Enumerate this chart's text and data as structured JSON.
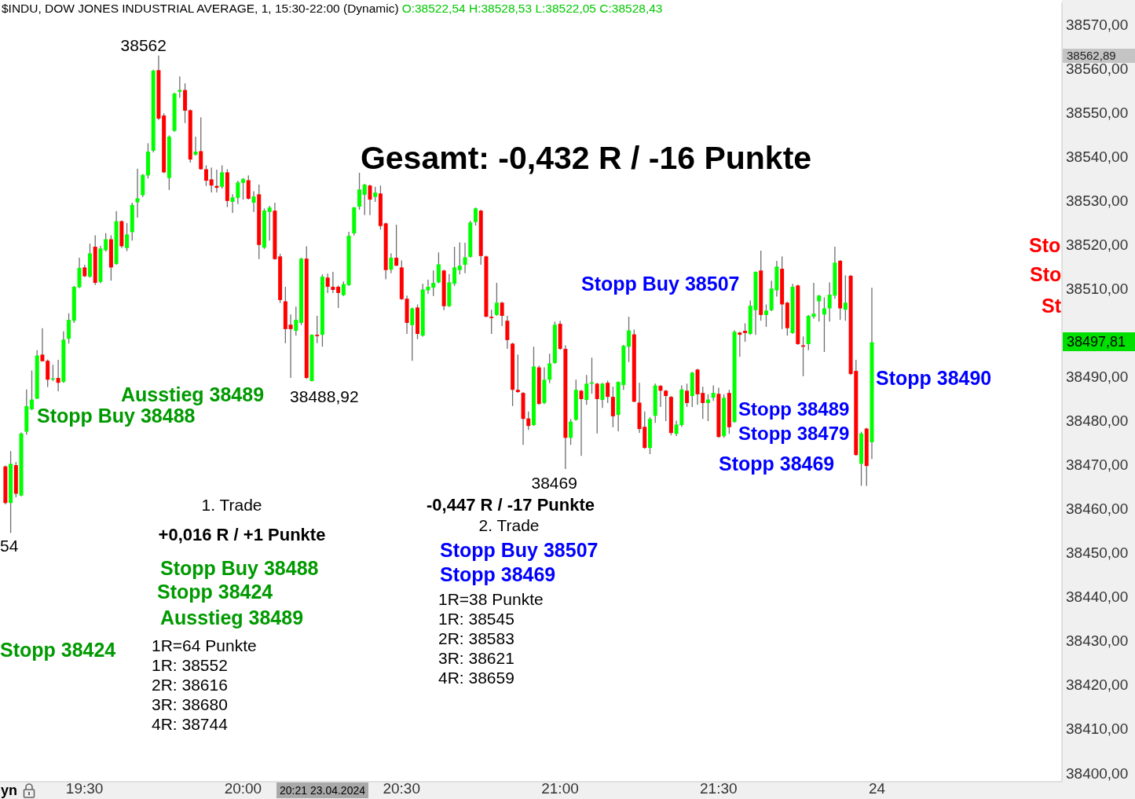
{
  "chart_data": {
    "type": "candlestick",
    "title": "$INDU, DOW JONES INDUSTRIAL AVERAGE, 1, 15:30-22:00 (Dynamic)",
    "subtitle": "O:38522,54 H:38528,53 L:38522,05 C:38528,43",
    "x": [
      "2024-04-23T19:15",
      "2024-04-23T19:16",
      "2024-04-23T19:17",
      "2024-04-23T19:18",
      "2024-04-23T19:19",
      "2024-04-23T19:20",
      "2024-04-23T19:21",
      "2024-04-23T19:22",
      "2024-04-23T19:23",
      "2024-04-23T19:24",
      "2024-04-23T19:25",
      "2024-04-23T19:26",
      "2024-04-23T19:27",
      "2024-04-23T19:28",
      "2024-04-23T19:29",
      "2024-04-23T19:30",
      "2024-04-23T19:31",
      "2024-04-23T19:32",
      "2024-04-23T19:33",
      "2024-04-23T19:34",
      "2024-04-23T19:35",
      "2024-04-23T19:36",
      "2024-04-23T19:37",
      "2024-04-23T19:38",
      "2024-04-23T19:39",
      "2024-04-23T19:40",
      "2024-04-23T19:41",
      "2024-04-23T19:42",
      "2024-04-23T19:43",
      "2024-04-23T19:44",
      "2024-04-23T19:45",
      "2024-04-23T19:46",
      "2024-04-23T19:47",
      "2024-04-23T19:48",
      "2024-04-23T19:49",
      "2024-04-23T19:50",
      "2024-04-23T19:51",
      "2024-04-23T19:52",
      "2024-04-23T19:53",
      "2024-04-23T19:54",
      "2024-04-23T19:55",
      "2024-04-23T19:56",
      "2024-04-23T19:57",
      "2024-04-23T19:58",
      "2024-04-23T19:59",
      "2024-04-23T20:00",
      "2024-04-23T20:01",
      "2024-04-23T20:02",
      "2024-04-23T20:03",
      "2024-04-23T20:04",
      "2024-04-23T20:05",
      "2024-04-23T20:06",
      "2024-04-23T20:07",
      "2024-04-23T20:08",
      "2024-04-23T20:09",
      "2024-04-23T20:10",
      "2024-04-23T20:11",
      "2024-04-23T20:12",
      "2024-04-23T20:13",
      "2024-04-23T20:14",
      "2024-04-23T20:15",
      "2024-04-23T20:16",
      "2024-04-23T20:17",
      "2024-04-23T20:18",
      "2024-04-23T20:19",
      "2024-04-23T20:20",
      "2024-04-23T20:21",
      "2024-04-23T20:22",
      "2024-04-23T20:23",
      "2024-04-23T20:24",
      "2024-04-23T20:25",
      "2024-04-23T20:26",
      "2024-04-23T20:27",
      "2024-04-23T20:28",
      "2024-04-23T20:29",
      "2024-04-23T20:30",
      "2024-04-23T20:31",
      "2024-04-23T20:32",
      "2024-04-23T20:33",
      "2024-04-23T20:34",
      "2024-04-23T20:35",
      "2024-04-23T20:36",
      "2024-04-23T20:37",
      "2024-04-23T20:38",
      "2024-04-23T20:39",
      "2024-04-23T20:40",
      "2024-04-23T20:41",
      "2024-04-23T20:42",
      "2024-04-23T20:43",
      "2024-04-23T20:44",
      "2024-04-23T20:45",
      "2024-04-23T20:46",
      "2024-04-23T20:47",
      "2024-04-23T20:48",
      "2024-04-23T20:49",
      "2024-04-23T20:50",
      "2024-04-23T20:51",
      "2024-04-23T20:52",
      "2024-04-23T20:53",
      "2024-04-23T20:54",
      "2024-04-23T20:55",
      "2024-04-23T20:56",
      "2024-04-23T20:57",
      "2024-04-23T20:58",
      "2024-04-23T20:59",
      "2024-04-23T21:00",
      "2024-04-23T21:01",
      "2024-04-23T21:02",
      "2024-04-23T21:03",
      "2024-04-23T21:04",
      "2024-04-23T21:05",
      "2024-04-23T21:06",
      "2024-04-23T21:07",
      "2024-04-23T21:08",
      "2024-04-23T21:09",
      "2024-04-23T21:10",
      "2024-04-23T21:11",
      "2024-04-23T21:12",
      "2024-04-23T21:13",
      "2024-04-23T21:14",
      "2024-04-23T21:15",
      "2024-04-23T21:16",
      "2024-04-23T21:17",
      "2024-04-23T21:18",
      "2024-04-23T21:19",
      "2024-04-23T21:20",
      "2024-04-23T21:21",
      "2024-04-23T21:22",
      "2024-04-23T21:23",
      "2024-04-23T21:24",
      "2024-04-23T21:25",
      "2024-04-23T21:26",
      "2024-04-23T21:27",
      "2024-04-23T21:28",
      "2024-04-23T21:29",
      "2024-04-23T21:30",
      "2024-04-23T21:31",
      "2024-04-23T21:32",
      "2024-04-23T21:33",
      "2024-04-23T21:34",
      "2024-04-23T21:35",
      "2024-04-23T21:36",
      "2024-04-23T21:37",
      "2024-04-23T21:38",
      "2024-04-23T21:39",
      "2024-04-23T21:40",
      "2024-04-23T21:41",
      "2024-04-23T21:42",
      "2024-04-23T21:43",
      "2024-04-23T21:44",
      "2024-04-23T21:45",
      "2024-04-23T21:46",
      "2024-04-23T21:47",
      "2024-04-23T21:48",
      "2024-04-23T21:49",
      "2024-04-23T21:50",
      "2024-04-23T21:51",
      "2024-04-23T21:52",
      "2024-04-23T21:53",
      "2024-04-23T21:54",
      "2024-04-23T21:55",
      "2024-04-23T21:56",
      "2024-04-23T21:57",
      "2024-04-23T21:58",
      "2024-04-23T21:59"
    ],
    "ohlc": [
      [
        38469.6,
        38469.8,
        38461.0,
        38461.3
      ],
      [
        38461.3,
        38473.1,
        38454.5,
        38470.2
      ],
      [
        38469.9,
        38470.6,
        38462.6,
        38463.4
      ],
      [
        38463.0,
        38477.3,
        38462.8,
        38477.1
      ],
      [
        38477.5,
        38487.1,
        38476.8,
        38483.3
      ],
      [
        38482.6,
        38491.4,
        38482.4,
        38484.8
      ],
      [
        38485.0,
        38496.0,
        38484.9,
        38494.8
      ],
      [
        38495.0,
        38501.0,
        38493.4,
        38493.5
      ],
      [
        38493.6,
        38493.9,
        38487.6,
        38489.3
      ],
      [
        38489.4,
        38492.7,
        38489.0,
        38489.6
      ],
      [
        38489.7,
        38493.8,
        38486.7,
        38488.6
      ],
      [
        38488.8,
        38500.3,
        38488.6,
        38498.4
      ],
      [
        38498.6,
        38504.4,
        38497.5,
        38502.9
      ],
      [
        38502.7,
        38510.6,
        38502.2,
        38510.4
      ],
      [
        38510.3,
        38517.0,
        38510.1,
        38514.7
      ],
      [
        38514.8,
        38515.4,
        38512.6,
        38512.8
      ],
      [
        38512.7,
        38520.2,
        38512.5,
        38518.0
      ],
      [
        38519.5,
        38522.1,
        38510.8,
        38511.3
      ],
      [
        38511.5,
        38519.7,
        38511.2,
        38519.1
      ],
      [
        38518.7,
        38522.6,
        38518.4,
        38521.2
      ],
      [
        38521.2,
        38522.1,
        38511.8,
        38514.8
      ],
      [
        38515.6,
        38527.6,
        38515.4,
        38525.3
      ],
      [
        38525.3,
        38525.5,
        38519.2,
        38519.6
      ],
      [
        38519.2,
        38524.9,
        38518.5,
        38522.3
      ],
      [
        38522.8,
        38529.5,
        38520.9,
        38529.0
      ],
      [
        38529.6,
        38537.2,
        38526.1,
        38530.5
      ],
      [
        38531.2,
        38536.0,
        38530.8,
        38535.8
      ],
      [
        38535.7,
        38543.0,
        38535.0,
        38541.1
      ],
      [
        38541.3,
        38559.7,
        38540.9,
        38559.5
      ],
      [
        38559.6,
        38562.89,
        38548.3,
        38548.6
      ],
      [
        38549.3,
        38549.8,
        38536.2,
        38536.4
      ],
      [
        38535.1,
        38544.8,
        38532.4,
        38544.5
      ],
      [
        38545.8,
        38554.5,
        38545.6,
        38554.3
      ],
      [
        38554.7,
        38558.2,
        38553.3,
        38555.1
      ],
      [
        38555.1,
        38556.6,
        38547.6,
        38550.4
      ],
      [
        38550.5,
        38550.7,
        38538.6,
        38539.3
      ],
      [
        38540.4,
        38544.5,
        38540.2,
        38541.1
      ],
      [
        38541.2,
        38548.9,
        38537.0,
        38537.1
      ],
      [
        38537.1,
        38538.0,
        38533.3,
        38534.5
      ],
      [
        38534.8,
        38537.5,
        38531.8,
        38533.4
      ],
      [
        38533.3,
        38537.0,
        38531.8,
        38532.9
      ],
      [
        38533.1,
        38538.0,
        38532.7,
        38536.4
      ],
      [
        38536.4,
        38537.1,
        38528.5,
        38529.9
      ],
      [
        38529.7,
        38531.4,
        38527.2,
        38530.7
      ],
      [
        38530.6,
        38534.5,
        38529.2,
        38534.1
      ],
      [
        38534.0,
        38535.1,
        38530.2,
        38534.9
      ],
      [
        38534.6,
        38535.7,
        38530.2,
        38530.4
      ],
      [
        38529.5,
        38532.1,
        38527.4,
        38530.9
      ],
      [
        38531.4,
        38533.6,
        38516.7,
        38519.9
      ],
      [
        38519.3,
        38528.2,
        38519.0,
        38527.7
      ],
      [
        38527.4,
        38528.8,
        38520.9,
        38528.4
      ],
      [
        38527.7,
        38529.5,
        38516.5,
        38516.7
      ],
      [
        38517.3,
        38517.9,
        38506.7,
        38507.4
      ],
      [
        38507.1,
        38510.4,
        38497.6,
        38500.8
      ],
      [
        38501.8,
        38504.1,
        38489.7,
        38500.8
      ],
      [
        38500.4,
        38505.9,
        38499.3,
        38502.9
      ],
      [
        38502.2,
        38517.0,
        38501.7,
        38516.8
      ],
      [
        38516.8,
        38519.6,
        38489.5,
        38489.7
      ],
      [
        38489.0,
        38499.6,
        38488.92,
        38499.5
      ],
      [
        38499.5,
        38503.8,
        38497.6,
        38499.2
      ],
      [
        38499.5,
        38513.2,
        38496.8,
        38512.7
      ],
      [
        38512.5,
        38513.4,
        38509.0,
        38510.4
      ],
      [
        38510.4,
        38513.8,
        38509.0,
        38509.7
      ],
      [
        38510.4,
        38510.7,
        38505.6,
        38509.0
      ],
      [
        38508.5,
        38511.6,
        38508.3,
        38511.0
      ],
      [
        38510.8,
        38522.9,
        38510.6,
        38522.0
      ],
      [
        38522.54,
        38528.53,
        38522.05,
        38528.43
      ],
      [
        38528.6,
        38536.3,
        38527.9,
        38532.5
      ],
      [
        38531.3,
        38533.8,
        38526.7,
        38533.6
      ],
      [
        38533.4,
        38533.6,
        38526.7,
        38530.2
      ],
      [
        38530.8,
        38533.1,
        38529.7,
        38531.8
      ],
      [
        38531.6,
        38533.4,
        38523.4,
        38524.2
      ],
      [
        38524.8,
        38525.0,
        38512.1,
        38514.2
      ],
      [
        38514.3,
        38518.0,
        38513.5,
        38517.0
      ],
      [
        38517.0,
        38524.5,
        38515.1,
        38515.2
      ],
      [
        38514.8,
        38516.4,
        38507.4,
        38507.6
      ],
      [
        38507.7,
        38508.4,
        38499.7,
        38502.2
      ],
      [
        38501.7,
        38505.7,
        38493.6,
        38505.5
      ],
      [
        38505.7,
        38506.4,
        38498.5,
        38499.7
      ],
      [
        38499.3,
        38511.1,
        38499.1,
        38509.8
      ],
      [
        38509.6,
        38512.0,
        38508.8,
        38510.4
      ],
      [
        38510.2,
        38514.1,
        38508.3,
        38511.3
      ],
      [
        38511.4,
        38518.2,
        38511.2,
        38515.5
      ],
      [
        38514.1,
        38514.3,
        38505.1,
        38506.0
      ],
      [
        38506.0,
        38513.3,
        38505.8,
        38511.4
      ],
      [
        38511.1,
        38519.5,
        38510.6,
        38514.8
      ],
      [
        38514.2,
        38520.5,
        38513.2,
        38515.2
      ],
      [
        38515.4,
        38520.4,
        38513.5,
        38517.1
      ],
      [
        38517.2,
        38525.4,
        38517.0,
        38525.0
      ],
      [
        38525.1,
        38528.4,
        38524.3,
        38528.2
      ],
      [
        38527.7,
        38527.9,
        38515.4,
        38517.4
      ],
      [
        38517.3,
        38517.5,
        38503.5,
        38503.6
      ],
      [
        38503.6,
        38505.2,
        38499.7,
        38503.3
      ],
      [
        38504.0,
        38511.3,
        38503.8,
        38506.8
      ],
      [
        38506.8,
        38507.0,
        38501.5,
        38503.8
      ],
      [
        38502.7,
        38503.8,
        38496.3,
        38498.3
      ],
      [
        38497.5,
        38497.7,
        38483.3,
        38487.0
      ],
      [
        38487.0,
        38495.0,
        38486.3,
        38486.5
      ],
      [
        38486.3,
        38486.5,
        38474.5,
        38480.4
      ],
      [
        38480.5,
        38482.1,
        38477.9,
        38478.8
      ],
      [
        38479.0,
        38496.8,
        38478.8,
        38492.3
      ],
      [
        38492.1,
        38492.5,
        38483.6,
        38483.8
      ],
      [
        38484.0,
        38492.1,
        38483.8,
        38489.3
      ],
      [
        38489.3,
        38495.2,
        38488.5,
        38493.0
      ],
      [
        38493.1,
        38502.5,
        38492.9,
        38501.8
      ],
      [
        38502.0,
        38502.7,
        38496.1,
        38496.3
      ],
      [
        38496.3,
        38497.1,
        38469.0,
        38476.1
      ],
      [
        38476.1,
        38480.4,
        38474.5,
        38479.8
      ],
      [
        38480.2,
        38489.3,
        38480.0,
        38487.0
      ],
      [
        38486.8,
        38487.0,
        38472.0,
        38484.9
      ],
      [
        38484.7,
        38490.4,
        38483.6,
        38488.4
      ],
      [
        38488.4,
        38494.3,
        38486.1,
        38488.7
      ],
      [
        38488.4,
        38488.6,
        38477.1,
        38484.9
      ],
      [
        38484.7,
        38488.6,
        38482.9,
        38488.4
      ],
      [
        38488.6,
        38489.1,
        38484.0,
        38485.4
      ],
      [
        38485.4,
        38487.7,
        38478.5,
        38481.0
      ],
      [
        38481.3,
        38488.9,
        38477.6,
        38488.8
      ],
      [
        38488.1,
        38497.2,
        38487.0,
        38497.0
      ],
      [
        38496.8,
        38503.6,
        38493.3,
        38500.5
      ],
      [
        38499.6,
        38500.7,
        38484.2,
        38484.3
      ],
      [
        38484.1,
        38488.6,
        38477.2,
        38478.1
      ],
      [
        38478.6,
        38482.1,
        38473.6,
        38473.8
      ],
      [
        38473.8,
        38480.8,
        38472.4,
        38480.4
      ],
      [
        38481.1,
        38488.4,
        38479.5,
        38488.0
      ],
      [
        38487.9,
        38488.1,
        38483.1,
        38486.8
      ],
      [
        38486.8,
        38487.0,
        38479.9,
        38485.6
      ],
      [
        38485.4,
        38485.6,
        38476.7,
        38477.2
      ],
      [
        38477.0,
        38480.0,
        38476.5,
        38479.1
      ],
      [
        38479.0,
        38488.0,
        38478.6,
        38487.1
      ],
      [
        38486.8,
        38488.4,
        38483.1,
        38484.0
      ],
      [
        38485.6,
        38491.1,
        38483.1,
        38490.9
      ],
      [
        38491.6,
        38491.8,
        38483.6,
        38486.0
      ],
      [
        38486.3,
        38487.7,
        38480.4,
        38484.0
      ],
      [
        38484.0,
        38486.0,
        38479.9,
        38484.8
      ],
      [
        38485.2,
        38488.0,
        38484.5,
        38486.3
      ],
      [
        38486.1,
        38487.5,
        38476.1,
        38476.3
      ],
      [
        38476.5,
        38486.0,
        38476.1,
        38485.2
      ],
      [
        38486.3,
        38487.0,
        38477.0,
        38478.5
      ],
      [
        38479.7,
        38500.5,
        38479.5,
        38500.2
      ],
      [
        38500.0,
        38500.2,
        38494.5,
        38499.5
      ],
      [
        38500.4,
        38502.1,
        38497.9,
        38499.9
      ],
      [
        38499.7,
        38507.3,
        38499.5,
        38506.1
      ],
      [
        38505.1,
        38513.9,
        38499.5,
        38513.8
      ],
      [
        38514.1,
        38518.6,
        38502.7,
        38504.0
      ],
      [
        38504.0,
        38506.4,
        38501.3,
        38505.0
      ],
      [
        38505.1,
        38511.8,
        38504.9,
        38510.0
      ],
      [
        38509.6,
        38516.3,
        38508.2,
        38515.0
      ],
      [
        38514.5,
        38517.3,
        38500.8,
        38506.4
      ],
      [
        38506.8,
        38507.0,
        38499.3,
        38501.0
      ],
      [
        38499.9,
        38511.1,
        38499.7,
        38510.4
      ],
      [
        38510.7,
        38510.9,
        38497.2,
        38497.4
      ],
      [
        38497.1,
        38499.1,
        38490.1,
        38496.8
      ],
      [
        38497.4,
        38504.0,
        38496.0,
        38503.8
      ],
      [
        38503.6,
        38511.3,
        38503.2,
        38504.3
      ],
      [
        38507.1,
        38508.6,
        38502.5,
        38508.4
      ],
      [
        38504.1,
        38508.0,
        38495.6,
        38505.5
      ],
      [
        38505.5,
        38511.4,
        38502.5,
        38508.6
      ],
      [
        38508.4,
        38519.5,
        38507.7,
        38515.9
      ],
      [
        38516.3,
        38516.5,
        38502.9,
        38505.5
      ],
      [
        38505.2,
        38513.0,
        38502.7,
        38506.8
      ],
      [
        38512.9,
        38513.1,
        38490.4,
        38490.6
      ],
      [
        38491.3,
        38493.8,
        38472.0,
        38472.2
      ],
      [
        38470.2,
        38477.5,
        38465.2,
        38477.1
      ],
      [
        38478.2,
        38478.4,
        38465.2,
        38469.7
      ],
      [
        38475.1,
        38510.2,
        38471.3,
        38497.81
      ]
    ],
    "xlim": [
      "2024-04-23T19:14",
      "2024-04-23T22:35"
    ],
    "xticks": [
      {
        "value": "2024-04-23T19:30",
        "label": "19:30"
      },
      {
        "value": "2024-04-23T20:00",
        "label": "20:00"
      },
      {
        "value": "2024-04-23T20:30",
        "label": "20:30"
      },
      {
        "value": "2024-04-23T21:00",
        "label": "21:00"
      },
      {
        "value": "2024-04-23T21:30",
        "label": "21:30"
      },
      {
        "value": "2024-04-23T22:00",
        "label": "24"
      }
    ],
    "ylim": [
      38398,
      38575
    ],
    "yticks": [
      {
        "value": 38400,
        "label": "38400,00"
      },
      {
        "value": 38410,
        "label": "38410,00"
      },
      {
        "value": 38420,
        "label": "38420,00"
      },
      {
        "value": 38430,
        "label": "38430,00"
      },
      {
        "value": 38440,
        "label": "38440,00"
      },
      {
        "value": 38450,
        "label": "38450,00"
      },
      {
        "value": 38460,
        "label": "38460,00"
      },
      {
        "value": 38470,
        "label": "38470,00"
      },
      {
        "value": 38480,
        "label": "38480,00"
      },
      {
        "value": 38490,
        "label": "38490,00"
      },
      {
        "value": 38510,
        "label": "38510,00"
      },
      {
        "value": 38520,
        "label": "38520,00"
      },
      {
        "value": 38530,
        "label": "38530,00"
      },
      {
        "value": 38540,
        "label": "38540,00"
      },
      {
        "value": 38550,
        "label": "38550,00"
      },
      {
        "value": 38560,
        "label": "38560,00"
      },
      {
        "value": 38570,
        "label": "38570,00"
      }
    ],
    "annotations": [
      "Gesamt: -0,432 R / -16 Punkte",
      {
        "text": "38562",
        "x": "2024-04-23T19:44",
        "y": 38562.89
      },
      "Ausstieg 38489",
      "Stopp Buy 38488",
      {
        "text": "38488,92",
        "x": "2024-04-23T20:13",
        "y": 38488.92
      },
      "54",
      "1. Trade",
      "+0,016 R / +1 Punkte",
      "Stopp Buy 38488",
      "Stopp 38424",
      "Ausstieg 38489",
      "Stopp 38424",
      "1R=64 Punkte",
      "1R: 38552",
      "2R: 38616",
      "3R: 38680",
      "4R: 38744",
      "Stopp Buy 38507",
      {
        "text": "38469",
        "x": "2024-04-23T21:01",
        "y": 38469
      },
      "-0,447 R / -17 Punkte",
      "2. Trade",
      "Stopp Buy 38507",
      "Stopp 38469",
      "1R=38 Punkte",
      "1R: 38545",
      "2R: 38583",
      "3R: 38621",
      "4R: 38659",
      "Stopp 38489",
      "Stopp 38479",
      "Stopp 38469",
      "Stopp 38490",
      "Sto",
      "Sto",
      "St",
      "38562,89",
      "38497,81",
      "20:21 23.04.2024",
      "yn"
    ]
  }
}
